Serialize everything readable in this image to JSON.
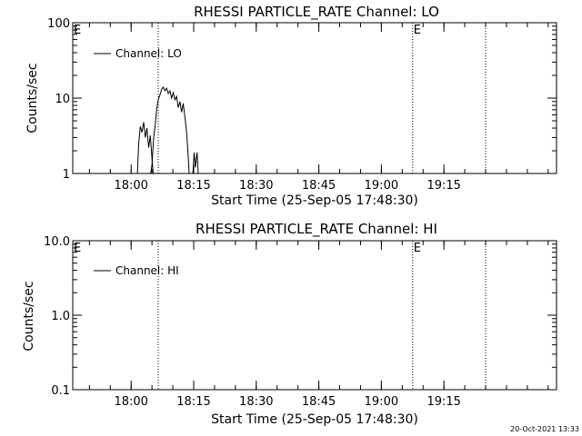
{
  "footer": {
    "timestamp": "20-Oct-2021 13:33"
  },
  "chart_data": [
    {
      "type": "line",
      "title": "RHESSI PARTICLE_RATE Channel: LO",
      "xlabel": "Start Time (25-Sep-05 17:48:30)",
      "ylabel": "Counts/sec",
      "y_scale": "log",
      "ylim": [
        1,
        100
      ],
      "y_ticks": [
        "1",
        "10",
        "100"
      ],
      "xlim_minutes": [
        -14,
        102
      ],
      "x_ticks": [
        "18:00",
        "18:15",
        "18:30",
        "18:45",
        "19:00",
        "19:15"
      ],
      "x_tick_minutes": [
        0,
        15,
        30,
        45,
        60,
        75
      ],
      "vertical_markers": [
        {
          "minute": 6.5,
          "label": ""
        },
        {
          "minute": 67.5,
          "label": "E"
        },
        {
          "minute": 85,
          "label": ""
        }
      ],
      "corner_label": "E",
      "legend": {
        "position": "top-left",
        "entries": [
          "Channel: LO"
        ]
      },
      "series": [
        {
          "name": "Channel: LO",
          "segments": [
            [
              [
                1.5,
                1
              ],
              [
                1.8,
                2.5
              ],
              [
                2.2,
                4.2
              ],
              [
                2.6,
                3.5
              ],
              [
                3,
                4.8
              ],
              [
                3.4,
                3.0
              ],
              [
                3.8,
                4.0
              ],
              [
                4.2,
                2.2
              ],
              [
                4.6,
                3.2
              ],
              [
                5.0,
                1.6
              ],
              [
                5.3,
                1
              ]
            ],
            [
              [
                4.7,
                1
              ],
              [
                5.0,
                1.3
              ],
              [
                5.4,
                3.0
              ],
              [
                5.8,
                4.5
              ],
              [
                6.1,
                7.0
              ],
              [
                6.5,
                9.5
              ],
              [
                6.9,
                11.0
              ],
              [
                7.3,
                13.0
              ],
              [
                7.7,
                14.0
              ],
              [
                8.1,
                12.5
              ],
              [
                8.5,
                13.5
              ],
              [
                8.9,
                11.5
              ],
              [
                9.3,
                12.5
              ],
              [
                9.7,
                10.0
              ],
              [
                10.1,
                11.8
              ],
              [
                10.5,
                9.5
              ],
              [
                10.9,
                10.5
              ],
              [
                11.3,
                7.5
              ],
              [
                11.7,
                9.0
              ],
              [
                12.1,
                6.5
              ],
              [
                12.5,
                8.5
              ],
              [
                12.9,
                5.5
              ],
              [
                13.3,
                3.5
              ],
              [
                13.6,
                2.0
              ],
              [
                13.9,
                1
              ]
            ],
            [
              [
                14.8,
                1
              ],
              [
                15.1,
                1.9
              ],
              [
                15.4,
                1.2
              ],
              [
                15.8,
                1.9
              ],
              [
                16.1,
                1
              ]
            ]
          ]
        }
      ]
    },
    {
      "type": "line",
      "title": "RHESSI PARTICLE_RATE Channel: HI",
      "xlabel": "Start Time (25-Sep-05 17:48:30)",
      "ylabel": "Counts/sec",
      "y_scale": "log",
      "ylim": [
        0.1,
        10
      ],
      "y_ticks": [
        "0.1",
        "1.0",
        "10.0"
      ],
      "xlim_minutes": [
        -14,
        102
      ],
      "x_ticks": [
        "18:00",
        "18:15",
        "18:30",
        "18:45",
        "19:00",
        "19:15"
      ],
      "x_tick_minutes": [
        0,
        15,
        30,
        45,
        60,
        75
      ],
      "vertical_markers": [
        {
          "minute": 6.5,
          "label": ""
        },
        {
          "minute": 67.5,
          "label": "E"
        },
        {
          "minute": 85,
          "label": ""
        }
      ],
      "corner_label": "E",
      "legend": {
        "position": "top-left",
        "entries": [
          "Channel: HI"
        ]
      },
      "series": [
        {
          "name": "Channel: HI",
          "segments": []
        }
      ]
    }
  ]
}
